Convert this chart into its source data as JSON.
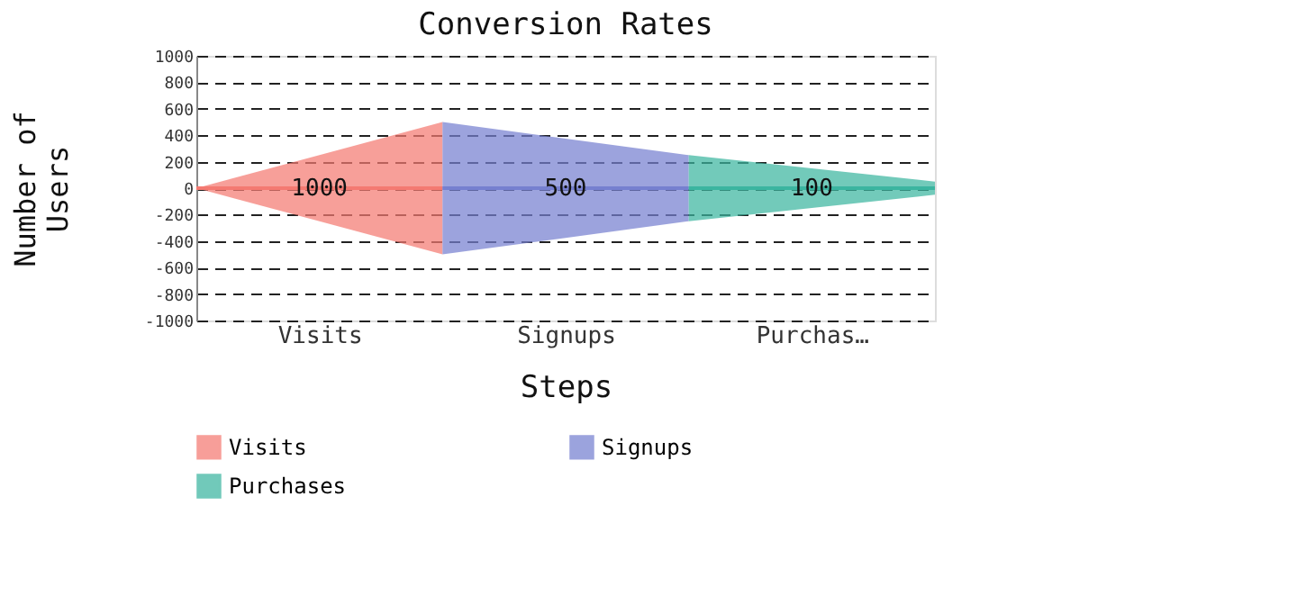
{
  "chart_data": {
    "type": "line",
    "marker": "none",
    "title": "Conversion Rates",
    "xlabel": "Steps",
    "ylabel": "Number of Users",
    "categories": [
      null,
      "Visits",
      null,
      "Signups",
      null,
      "Purchas…",
      null
    ],
    "series": [
      {
        "name": "Visits",
        "color": "#f47a72",
        "values": [
          0,
          0,
          0,
          null,
          null,
          null,
          null
        ],
        "lower": [
          0,
          -250,
          -500,
          null,
          null,
          null,
          null
        ],
        "upper": [
          0,
          250,
          500,
          null,
          null,
          null,
          null
        ]
      },
      {
        "name": "Signups",
        "color": "#7680d0",
        "values": [
          null,
          null,
          0,
          0,
          0,
          null,
          null
        ],
        "lower": [
          null,
          null,
          -500,
          -375,
          -250,
          null,
          null
        ],
        "upper": [
          null,
          null,
          500,
          375,
          250,
          null,
          null
        ]
      },
      {
        "name": "Purchases",
        "color": "#3bb5a0",
        "values": [
          null,
          null,
          null,
          null,
          0,
          0,
          0
        ],
        "lower": [
          null,
          null,
          null,
          null,
          -250,
          -150,
          -50
        ],
        "upper": [
          null,
          null,
          null,
          null,
          250,
          150,
          50
        ]
      }
    ],
    "annotations": [
      "1000",
      "500",
      "100"
    ],
    "ylim": [
      -1000,
      1000
    ],
    "yticks": [
      -1000,
      -800,
      -600,
      -400,
      -200,
      0,
      200,
      400,
      600,
      800,
      1000
    ],
    "grid": "y",
    "legend": "bottom"
  }
}
